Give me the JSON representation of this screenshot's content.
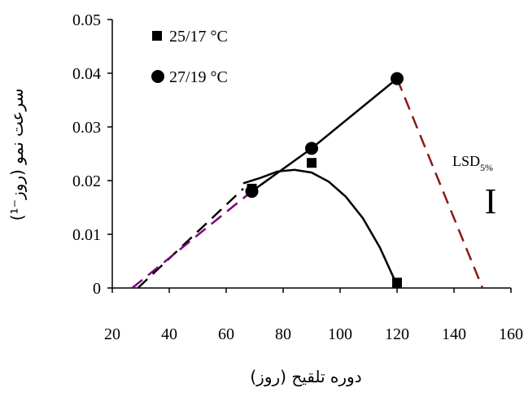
{
  "chart_data": {
    "type": "scatter",
    "xlabel": "دوره تلقیح (روز)",
    "ylabel": "سرعت نمو (روز⁻¹)",
    "xlim": [
      20,
      160
    ],
    "ylim": [
      0,
      0.05
    ],
    "x_ticks": [
      "20",
      "40",
      "60",
      "80",
      "100",
      "120",
      "140",
      "160"
    ],
    "y_ticks": [
      "0",
      "0.01",
      "0.02",
      "0.03",
      "0.04",
      "0.05"
    ],
    "grid": false,
    "legend_position": "top-left",
    "series": [
      {
        "name": "25/17 °C",
        "marker": "square",
        "color": "#000000",
        "points": [
          {
            "x": 69,
            "y": 0.0185
          },
          {
            "x": 90,
            "y": 0.0233
          },
          {
            "x": 120,
            "y": 0.001
          }
        ],
        "fit": {
          "style": "solid",
          "curve": [
            [
              66,
              0.0195
            ],
            [
              72,
              0.0205
            ],
            [
              78,
              0.0217
            ],
            [
              84,
              0.022
            ],
            [
              90,
              0.0215
            ],
            [
              96,
              0.0198
            ],
            [
              102,
              0.017
            ],
            [
              108,
              0.013
            ],
            [
              114,
              0.0075
            ],
            [
              120,
              0.0005
            ]
          ]
        }
      },
      {
        "name": "27/19 °C",
        "marker": "circle",
        "color": "#000000",
        "points": [
          {
            "x": 69,
            "y": 0.018
          },
          {
            "x": 90,
            "y": 0.026
          },
          {
            "x": 120,
            "y": 0.039
          }
        ],
        "fit": {
          "style": "solid",
          "curve": [
            [
              69,
              0.018
            ],
            [
              90,
              0.026
            ],
            [
              120,
              0.039
            ]
          ]
        }
      }
    ],
    "extrapolations": [
      {
        "color": "#000000",
        "style": "dashed",
        "from": [
          29,
          0
        ],
        "to": [
          66,
          0.0185
        ]
      },
      {
        "color": "#800080",
        "style": "dashed",
        "from": [
          27,
          0
        ],
        "to": [
          69,
          0.018
        ]
      },
      {
        "color": "#8b1a1a",
        "style": "dashed",
        "from": [
          120,
          0.039
        ],
        "to": [
          150,
          0
        ]
      }
    ],
    "annotations": {
      "lsd_label": "LSD",
      "lsd_subscript": "5%",
      "lsd_bar_glyph": "I"
    }
  }
}
